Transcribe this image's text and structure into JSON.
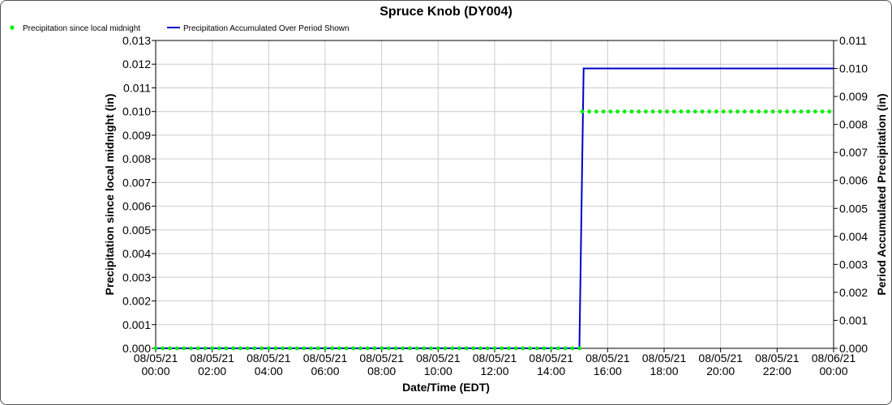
{
  "chart_data": {
    "type": "line",
    "title": "Spruce Knob (DY004)",
    "xlabel": "Date/Time (EDT)",
    "ylabel_left": "Precipitation since local midnight (in)",
    "ylabel_right": "Period Accumulated Precipitation (in)",
    "x_ticks": [
      {
        "h": 0,
        "date": "08/05/21",
        "time": "00:00"
      },
      {
        "h": 2,
        "date": "08/05/21",
        "time": "02:00"
      },
      {
        "h": 4,
        "date": "08/05/21",
        "time": "04:00"
      },
      {
        "h": 6,
        "date": "08/05/21",
        "time": "06:00"
      },
      {
        "h": 8,
        "date": "08/05/21",
        "time": "08:00"
      },
      {
        "h": 10,
        "date": "08/05/21",
        "time": "10:00"
      },
      {
        "h": 12,
        "date": "08/05/21",
        "time": "12:00"
      },
      {
        "h": 14,
        "date": "08/05/21",
        "time": "14:00"
      },
      {
        "h": 16,
        "date": "08/05/21",
        "time": "16:00"
      },
      {
        "h": 18,
        "date": "08/05/21",
        "time": "18:00"
      },
      {
        "h": 20,
        "date": "08/05/21",
        "time": "20:00"
      },
      {
        "h": 22,
        "date": "08/05/21",
        "time": "22:00"
      },
      {
        "h": 24,
        "date": "08/06/21",
        "time": "00:00"
      }
    ],
    "xlim": [
      0,
      24
    ],
    "ylim_left": [
      0,
      0.013
    ],
    "ylim_right": [
      0,
      0.011
    ],
    "y_ticks_left": [
      "0.000",
      "0.001",
      "0.002",
      "0.003",
      "0.004",
      "0.005",
      "0.006",
      "0.007",
      "0.008",
      "0.009",
      "0.010",
      "0.011",
      "0.012",
      "0.013"
    ],
    "y_ticks_right": [
      "0.000",
      "0.001",
      "0.002",
      "0.003",
      "0.004",
      "0.005",
      "0.006",
      "0.007",
      "0.008",
      "0.009",
      "0.010",
      "0.011"
    ],
    "grid": true,
    "legend_position": "top-left",
    "series": [
      {
        "name": "Precipitation since local midnight",
        "axis": "left",
        "style": "dots",
        "color": "#00ee00",
        "segments": [
          {
            "x_start": 0,
            "x_end": 15,
            "y": 0.0
          },
          {
            "x_start": 15.1,
            "x_end": 24,
            "y": 0.01
          }
        ],
        "step_hours": 0.25
      },
      {
        "name": "Precipitation Accumulated Over Period Shown",
        "axis": "right",
        "style": "line",
        "color": "#0000cc",
        "points": [
          [
            0,
            0.0
          ],
          [
            15.0,
            0.0
          ],
          [
            15.15,
            0.01
          ],
          [
            24,
            0.01
          ]
        ]
      }
    ]
  }
}
